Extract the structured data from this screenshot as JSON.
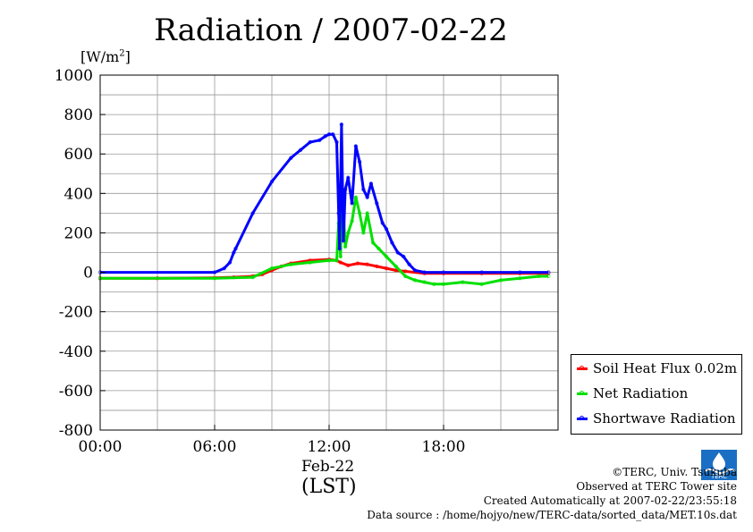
{
  "page": {
    "title": "Radiation / 2007-02-22",
    "units_prefix": "[W/m",
    "units_sup": "2",
    "units_suffix": "]",
    "xaxis_date": "Feb-22",
    "xaxis_unit": "(LST)"
  },
  "legend": {
    "items": [
      {
        "label": "Soil Heat Flux 0.02m",
        "color": "#ff0000"
      },
      {
        "label": "Net Radiation",
        "color": "#00e000"
      },
      {
        "label": "Shortwave Radiation",
        "color": "#0000ff"
      }
    ]
  },
  "footer": {
    "lines": [
      "©TERC, Univ. Tsukuba",
      "Observed at TERC Tower site",
      "Created Automatically at 2007-02-22/23:55:18",
      "Data source : /home/hojyo/new/TERC-data/sorted_data/MET.10s.dat"
    ],
    "logo_text": "TERC"
  },
  "chart_data": {
    "type": "line",
    "title": "Radiation / 2007-02-22",
    "ylabel": "[W/m2]",
    "xlabel": "(LST)",
    "xlim": [
      0,
      24
    ],
    "ylim": [
      -800,
      1000
    ],
    "xticks": [
      0,
      6,
      12,
      18
    ],
    "xtick_labels": [
      "00:00",
      "06:00",
      "12:00",
      "18:00"
    ],
    "yticks": [
      -800,
      -600,
      -400,
      -200,
      0,
      200,
      400,
      600,
      800,
      1000
    ],
    "ytick_labels": [
      "-800",
      "-600",
      "-400",
      "-200",
      "0",
      "200",
      "400",
      "600",
      "800",
      "1000"
    ],
    "grid": true,
    "legend_position": "right-bottom",
    "series": [
      {
        "name": "Shortwave Radiation",
        "color": "#0000ff",
        "x": [
          0,
          6.0,
          6.5,
          6.8,
          7.0,
          7.1,
          8,
          9,
          10,
          10.5,
          11,
          11.5,
          11.8,
          12,
          12.2,
          12.4,
          12.5,
          12.55,
          12.65,
          12.75,
          12.85,
          13,
          13.2,
          13.4,
          13.6,
          13.8,
          14,
          14.2,
          14.5,
          14.8,
          15,
          15.3,
          15.6,
          15.9,
          16.2,
          16.5,
          17,
          18,
          20,
          22,
          23.5
        ],
        "y": [
          0,
          0,
          20,
          50,
          100,
          120,
          300,
          460,
          580,
          620,
          660,
          670,
          690,
          700,
          700,
          660,
          300,
          120,
          750,
          160,
          420,
          480,
          350,
          640,
          560,
          420,
          380,
          450,
          350,
          250,
          220,
          150,
          100,
          80,
          40,
          10,
          0,
          0,
          0,
          0,
          0
        ]
      },
      {
        "name": "Net Radiation",
        "color": "#00e000",
        "x": [
          0,
          6,
          8,
          9,
          10,
          11,
          12,
          12.4,
          12.5,
          12.6,
          12.7,
          12.85,
          13,
          13.2,
          13.4,
          13.6,
          13.8,
          14,
          14.3,
          14.6,
          15,
          15.5,
          16,
          16.5,
          17,
          17.5,
          18,
          19,
          20,
          21,
          22,
          23,
          23.5
        ],
        "y": [
          -30,
          -30,
          -25,
          20,
          40,
          50,
          60,
          60,
          250,
          80,
          420,
          130,
          200,
          260,
          380,
          300,
          200,
          300,
          150,
          120,
          80,
          30,
          -20,
          -40,
          -50,
          -60,
          -60,
          -50,
          -60,
          -40,
          -30,
          -20,
          -20
        ]
      },
      {
        "name": "Soil Heat Flux 0.02m",
        "color": "#ff0000",
        "x": [
          0,
          3,
          6,
          7,
          8,
          8.5,
          9,
          9.5,
          10,
          11,
          12,
          12.4,
          12.6,
          13,
          13.5,
          14,
          14.5,
          15,
          15.5,
          16,
          17,
          18,
          20,
          22,
          23.5
        ],
        "y": [
          -30,
          -30,
          -28,
          -25,
          -20,
          -10,
          10,
          30,
          45,
          60,
          65,
          60,
          50,
          35,
          45,
          40,
          30,
          20,
          10,
          5,
          -5,
          -5,
          -5,
          -5,
          -5
        ]
      }
    ]
  }
}
